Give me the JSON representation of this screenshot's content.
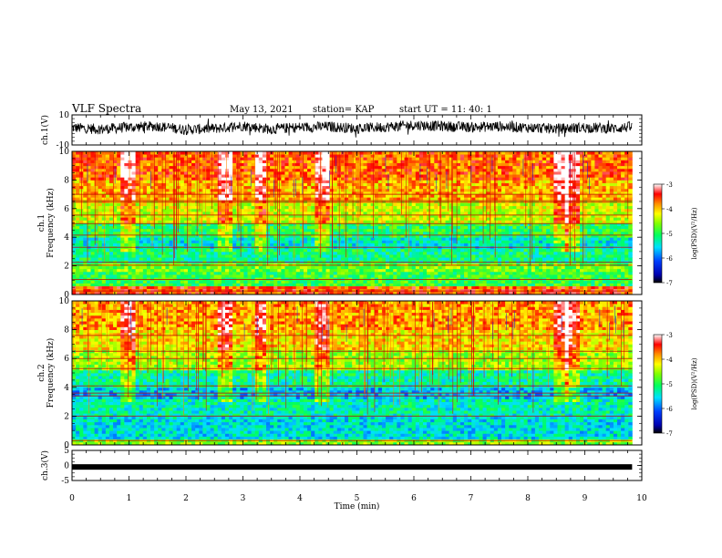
{
  "header": {
    "title": "VLF Spectra",
    "date": "May 13, 2021",
    "station": "station= KAP",
    "start_ut": "start  UT =   11: 40: 1"
  },
  "chart_data": [
    {
      "type": "line",
      "id": "ch1-waveform",
      "ylabel": "ch.1(V)",
      "ylim": [
        -10,
        10
      ],
      "yticklabels": [
        "10",
        "-10"
      ],
      "xlim": [
        0,
        10
      ],
      "data_extent_min": 9.83,
      "series": [
        {
          "x": [
            0,
            0.5,
            1,
            1.5,
            2,
            2.5,
            3,
            3.5,
            4,
            4.5,
            5,
            5.5,
            6,
            6.5,
            7,
            7.5,
            8,
            8.5,
            9,
            9.5,
            9.83
          ],
          "values": [
            1.5,
            0.5,
            1.8,
            2.5,
            0.2,
            1.0,
            2.8,
            0.5,
            1.8,
            2.2,
            1.0,
            2.0,
            3.2,
            2.5,
            1.8,
            2.4,
            1.5,
            0.8,
            1.6,
            1.0,
            2.0
          ]
        }
      ]
    },
    {
      "type": "heatmap",
      "id": "ch1-spectrogram",
      "ylabel": "ch.1\nFrequency (kHz)",
      "ylim": [
        0,
        10
      ],
      "yticklabels": [
        "0",
        "2",
        "4",
        "6",
        "8",
        "10"
      ],
      "xlim": [
        0,
        10
      ],
      "data_extent_min": 9.83,
      "colorbar": {
        "label": "log(PSD)(V²/Hz)",
        "range": [
          -7,
          -3
        ],
        "ticklabels": [
          "-3",
          "-4",
          "-5",
          "-6",
          "-7"
        ]
      },
      "bands": [
        {
          "f": [
            0,
            0.5
          ],
          "level": 0.85
        },
        {
          "f": [
            0.5,
            1.5
          ],
          "level": 0.52
        },
        {
          "f": [
            1.5,
            2.2
          ],
          "level": 0.58
        },
        {
          "f": [
            2.2,
            3.2
          ],
          "level": 0.46
        },
        {
          "f": [
            3.2,
            4.0
          ],
          "level": 0.4
        },
        {
          "f": [
            4.0,
            5.0
          ],
          "level": 0.5
        },
        {
          "f": [
            5.0,
            6.5
          ],
          "level": 0.66
        },
        {
          "f": [
            6.5,
            8.0
          ],
          "level": 0.76
        },
        {
          "f": [
            8.0,
            10.0
          ],
          "level": 0.83
        }
      ],
      "lines_khz": [
        0.25,
        1.05,
        2.05,
        2.25,
        3.3,
        4.15,
        4.95,
        5.55,
        6.45,
        6.55,
        7.0
      ],
      "bursts_min": [
        1.0,
        2.7,
        3.3,
        4.4,
        8.6,
        8.8
      ]
    },
    {
      "type": "heatmap",
      "id": "ch2-spectrogram",
      "ylabel": "ch.2\nFrequency (kHz)",
      "ylim": [
        0,
        10
      ],
      "yticklabels": [
        "0",
        "2",
        "4",
        "6",
        "8",
        "10"
      ],
      "xlim": [
        0,
        10
      ],
      "data_extent_min": 9.83,
      "colorbar": {
        "label": "log(PSD)(V²/Hz)",
        "range": [
          -7,
          -3
        ],
        "ticklabels": [
          "-3",
          "-4",
          "-5",
          "-6",
          "-7"
        ]
      },
      "bands": [
        {
          "f": [
            0,
            0.4
          ],
          "level": 0.6
        },
        {
          "f": [
            0.4,
            2.0
          ],
          "level": 0.38
        },
        {
          "f": [
            2.0,
            3.3
          ],
          "level": 0.42
        },
        {
          "f": [
            3.3,
            4.0
          ],
          "level": 0.34
        },
        {
          "f": [
            4.0,
            5.2
          ],
          "level": 0.44
        },
        {
          "f": [
            5.2,
            6.5
          ],
          "level": 0.62
        },
        {
          "f": [
            6.5,
            8.0
          ],
          "level": 0.72
        },
        {
          "f": [
            8.0,
            10.0
          ],
          "level": 0.78
        }
      ],
      "lines_khz": [
        0.3,
        2.0,
        3.4,
        3.6,
        4.1,
        5.3,
        6.0,
        6.5,
        7.6
      ],
      "bursts_min": [
        1.0,
        2.7,
        3.3,
        4.4,
        8.6,
        8.8
      ]
    },
    {
      "type": "line",
      "id": "ch3-waveform",
      "ylabel": "ch.3(V)",
      "ylim": [
        -5,
        5
      ],
      "yticklabels": [
        "5",
        "0",
        "-5"
      ],
      "xlim": [
        0,
        10
      ],
      "data_extent_min": 9.83,
      "series": [
        {
          "x": [
            0,
            9.83
          ],
          "values": [
            -0.5,
            -0.5
          ]
        }
      ]
    }
  ],
  "x_axis": {
    "label": "Time (min)",
    "ticklabels": [
      "0",
      "1",
      "2",
      "3",
      "4",
      "5",
      "6",
      "7",
      "8",
      "9",
      "10"
    ]
  }
}
